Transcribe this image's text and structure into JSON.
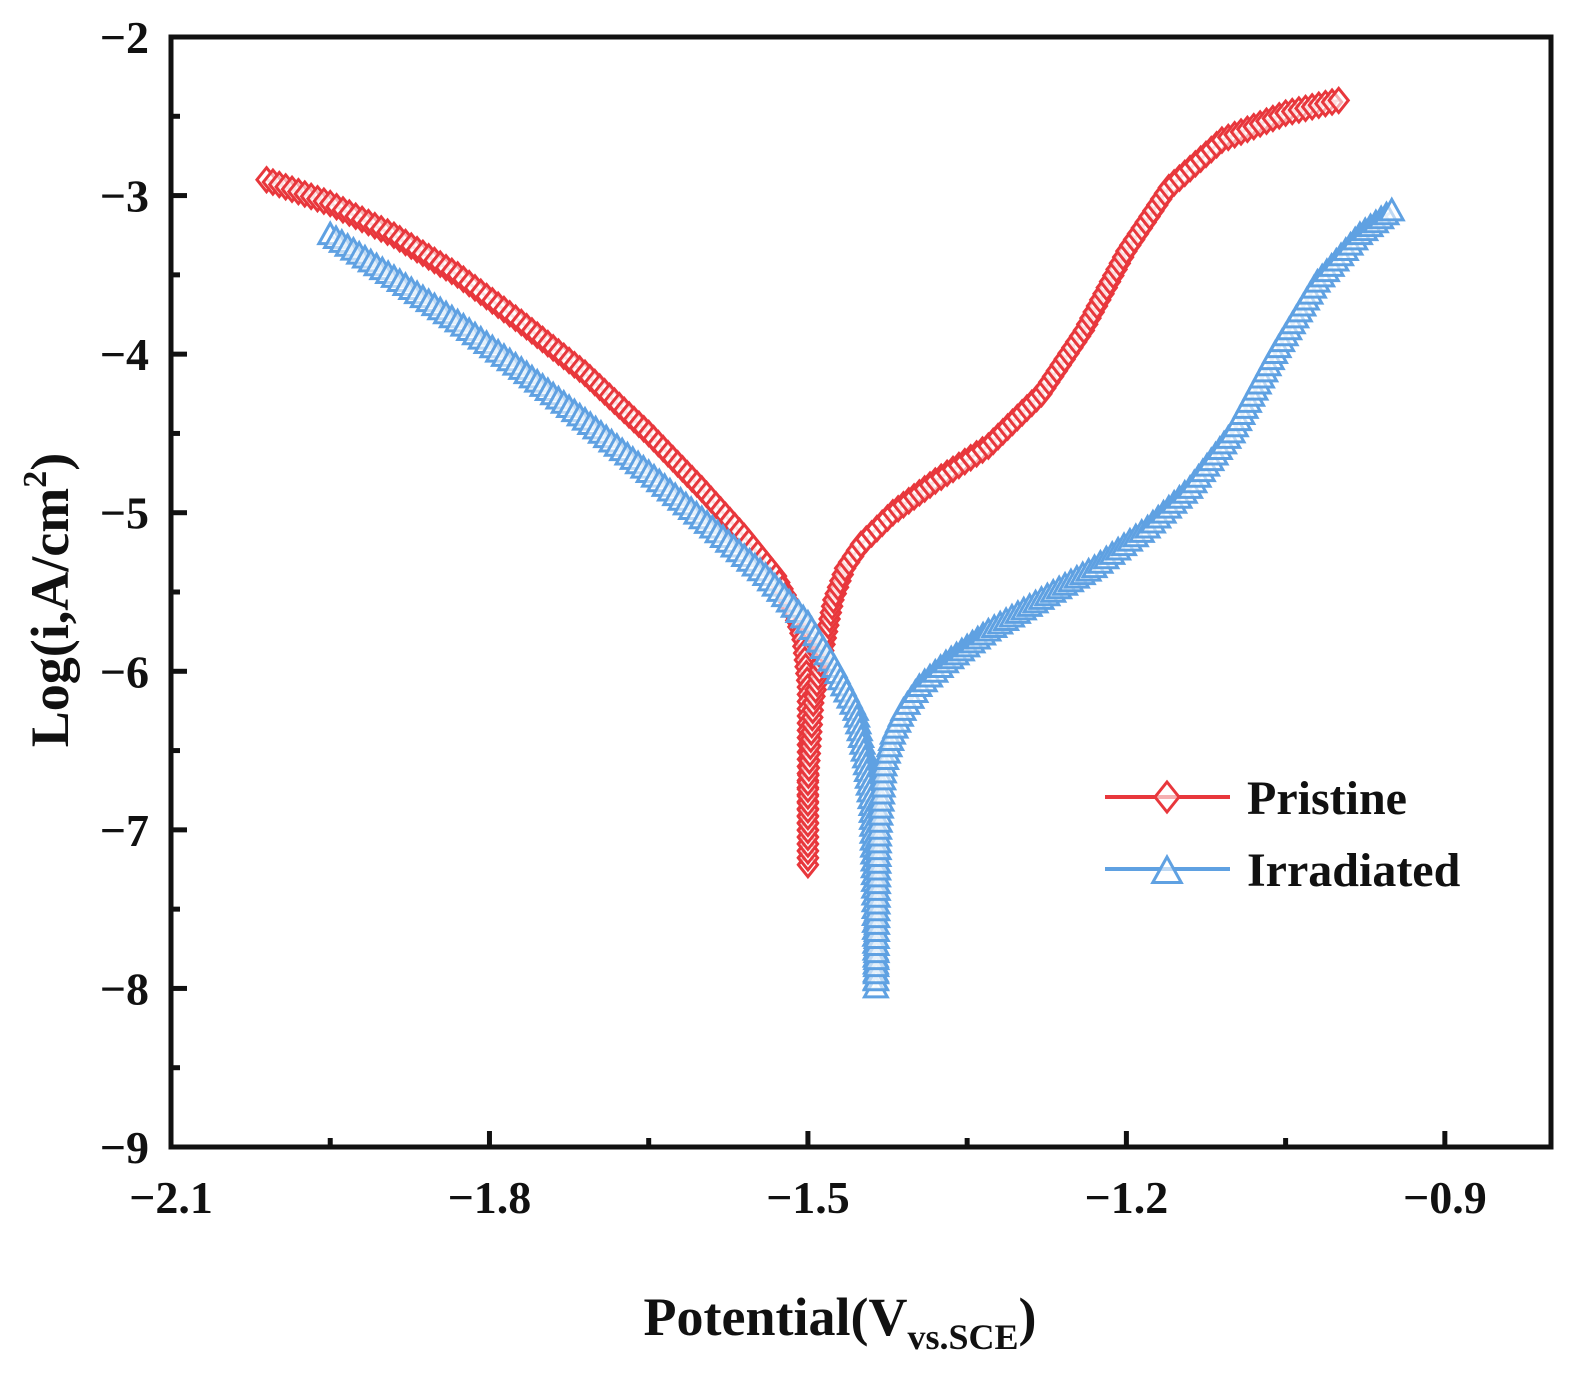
{
  "chart_data": {
    "type": "scatter",
    "title": "",
    "xlabel_main": "Potential(V",
    "xlabel_sub": "vs.SCE",
    "xlabel_close": ")",
    "ylabel_main": "Log(i,A/cm",
    "ylabel_sup": "2",
    "ylabel_close": ")",
    "xlim": [
      -2.1,
      -0.8
    ],
    "ylim": [
      -9,
      -2
    ],
    "xticks": [
      -2.1,
      -1.8,
      -1.5,
      -1.2,
      -0.9
    ],
    "xtick_labels": [
      "−2.1",
      "−1.8",
      "−1.5",
      "−1.2",
      "−0.9"
    ],
    "yticks": [
      -9,
      -8,
      -7,
      -6,
      -5,
      -4,
      -3,
      -2
    ],
    "ytick_labels": [
      "−9",
      "−8",
      "−7",
      "−6",
      "−5",
      "−4",
      "−3",
      "−2"
    ],
    "legend_position": "lower-right",
    "series": [
      {
        "name": "Pristine",
        "color": "#e8373c",
        "marker": "diamond",
        "points": [
          [
            -2.01,
            -2.9
          ],
          [
            -1.95,
            -3.05
          ],
          [
            -1.89,
            -3.25
          ],
          [
            -1.83,
            -3.5
          ],
          [
            -1.77,
            -3.8
          ],
          [
            -1.71,
            -4.12
          ],
          [
            -1.65,
            -4.5
          ],
          [
            -1.6,
            -4.85
          ],
          [
            -1.56,
            -5.15
          ],
          [
            -1.53,
            -5.4
          ],
          [
            -1.515,
            -5.6
          ],
          [
            -1.505,
            -5.8
          ],
          [
            -1.5,
            -6.1
          ],
          [
            -1.5,
            -6.6
          ],
          [
            -1.5,
            -7.0
          ],
          [
            -1.5,
            -7.22
          ],
          [
            -1.5,
            -6.7
          ],
          [
            -1.495,
            -6.2
          ],
          [
            -1.488,
            -5.95
          ],
          [
            -1.482,
            -5.75
          ],
          [
            -1.476,
            -5.55
          ],
          [
            -1.465,
            -5.35
          ],
          [
            -1.45,
            -5.2
          ],
          [
            -1.42,
            -5.0
          ],
          [
            -1.38,
            -4.8
          ],
          [
            -1.33,
            -4.58
          ],
          [
            -1.28,
            -4.25
          ],
          [
            -1.24,
            -3.85
          ],
          [
            -1.2,
            -3.35
          ],
          [
            -1.16,
            -2.95
          ],
          [
            -1.11,
            -2.65
          ],
          [
            -1.05,
            -2.48
          ],
          [
            -1.0,
            -2.4
          ]
        ]
      },
      {
        "name": "Irradiated",
        "color": "#5fa1e2",
        "marker": "triangle",
        "points": [
          [
            -1.95,
            -3.25
          ],
          [
            -1.89,
            -3.52
          ],
          [
            -1.83,
            -3.8
          ],
          [
            -1.77,
            -4.1
          ],
          [
            -1.71,
            -4.42
          ],
          [
            -1.65,
            -4.75
          ],
          [
            -1.59,
            -5.1
          ],
          [
            -1.54,
            -5.4
          ],
          [
            -1.5,
            -5.7
          ],
          [
            -1.475,
            -5.98
          ],
          [
            -1.455,
            -6.25
          ],
          [
            -1.446,
            -6.55
          ],
          [
            -1.44,
            -6.85
          ],
          [
            -1.438,
            -7.2
          ],
          [
            -1.437,
            -7.5
          ],
          [
            -1.436,
            -7.85
          ],
          [
            -1.436,
            -8.0
          ],
          [
            -1.435,
            -7.6
          ],
          [
            -1.433,
            -7.0
          ],
          [
            -1.428,
            -6.6
          ],
          [
            -1.42,
            -6.4
          ],
          [
            -1.41,
            -6.25
          ],
          [
            -1.395,
            -6.1
          ],
          [
            -1.37,
            -5.95
          ],
          [
            -1.33,
            -5.75
          ],
          [
            -1.28,
            -5.55
          ],
          [
            -1.23,
            -5.35
          ],
          [
            -1.18,
            -5.1
          ],
          [
            -1.14,
            -4.85
          ],
          [
            -1.1,
            -4.5
          ],
          [
            -1.06,
            -4.0
          ],
          [
            -1.02,
            -3.55
          ],
          [
            -0.98,
            -3.25
          ],
          [
            -0.95,
            -3.1
          ]
        ]
      }
    ]
  }
}
